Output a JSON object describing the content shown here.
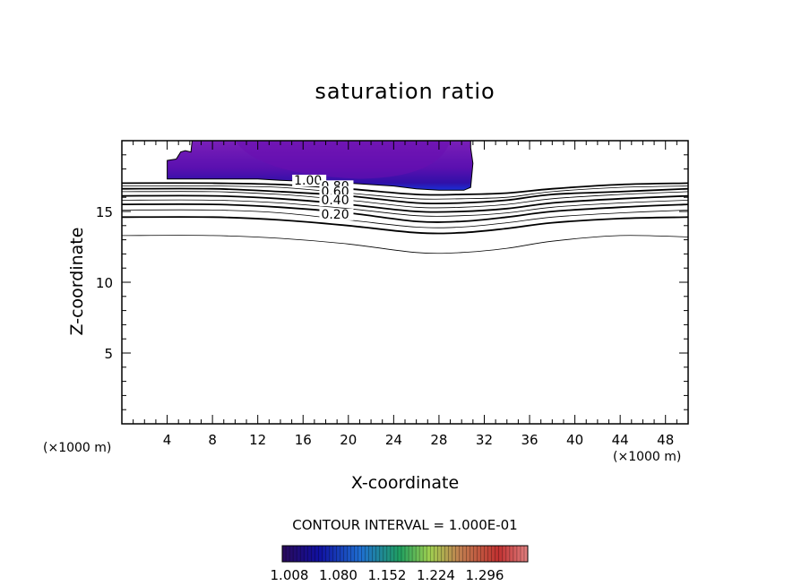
{
  "chart_data": {
    "type": "contour",
    "title": "saturation ratio",
    "xlabel": "X-coordinate",
    "ylabel": "Z-coordinate",
    "x_unit_left": "(×1000 m)",
    "x_unit_right": "(×1000 m)",
    "xlim": [
      0,
      50
    ],
    "ylim": [
      0,
      20
    ],
    "x_ticks": [
      4,
      8,
      12,
      16,
      20,
      24,
      28,
      32,
      36,
      40,
      44,
      48
    ],
    "y_ticks": [
      5,
      10,
      15
    ],
    "contour_interval_text": "CONTOUR INTERVAL = 1.000E-01",
    "contour_labels": [
      {
        "text": "1.00",
        "x": 15.2,
        "z": 16.9
      },
      {
        "text": "0.80",
        "x": 17.6,
        "z": 16.5
      },
      {
        "text": "0.60",
        "x": 17.6,
        "z": 16.1
      },
      {
        "text": "0.40",
        "x": 17.6,
        "z": 15.5
      },
      {
        "text": "0.20",
        "x": 17.6,
        "z": 14.5
      }
    ],
    "contour_lines": [
      {
        "level": 1.0,
        "bold": true,
        "points": [
          [
            0,
            17.0
          ],
          [
            8,
            17.0
          ],
          [
            14,
            16.9
          ],
          [
            20,
            16.6
          ],
          [
            26,
            16.2
          ],
          [
            30,
            16.2
          ],
          [
            34,
            16.3
          ],
          [
            38,
            16.6
          ],
          [
            44,
            16.9
          ],
          [
            50,
            17.0
          ]
        ]
      },
      {
        "level": 0.9,
        "bold": false,
        "points": [
          [
            0,
            16.8
          ],
          [
            8,
            16.8
          ],
          [
            14,
            16.7
          ],
          [
            20,
            16.3
          ],
          [
            26,
            15.9
          ],
          [
            30,
            15.9
          ],
          [
            34,
            16.0
          ],
          [
            38,
            16.4
          ],
          [
            44,
            16.7
          ],
          [
            50,
            16.8
          ]
        ]
      },
      {
        "level": 0.8,
        "bold": true,
        "points": [
          [
            0,
            16.6
          ],
          [
            8,
            16.6
          ],
          [
            14,
            16.4
          ],
          [
            20,
            16.1
          ],
          [
            26,
            15.6
          ],
          [
            30,
            15.6
          ],
          [
            34,
            15.8
          ],
          [
            38,
            16.2
          ],
          [
            44,
            16.4
          ],
          [
            50,
            16.6
          ]
        ]
      },
      {
        "level": 0.7,
        "bold": false,
        "points": [
          [
            0,
            16.4
          ],
          [
            8,
            16.4
          ],
          [
            14,
            16.2
          ],
          [
            20,
            15.8
          ],
          [
            26,
            15.3
          ],
          [
            30,
            15.3
          ],
          [
            34,
            15.5
          ],
          [
            38,
            15.9
          ],
          [
            44,
            16.2
          ],
          [
            50,
            16.4
          ]
        ]
      },
      {
        "level": 0.6,
        "bold": true,
        "points": [
          [
            0,
            16.1
          ],
          [
            8,
            16.1
          ],
          [
            14,
            15.9
          ],
          [
            20,
            15.5
          ],
          [
            26,
            15.0
          ],
          [
            30,
            15.0
          ],
          [
            34,
            15.2
          ],
          [
            38,
            15.6
          ],
          [
            44,
            15.9
          ],
          [
            50,
            16.1
          ]
        ]
      },
      {
        "level": 0.5,
        "bold": false,
        "points": [
          [
            0,
            15.8
          ],
          [
            8,
            15.8
          ],
          [
            14,
            15.6
          ],
          [
            20,
            15.2
          ],
          [
            26,
            14.7
          ],
          [
            30,
            14.7
          ],
          [
            34,
            14.9
          ],
          [
            38,
            15.3
          ],
          [
            44,
            15.6
          ],
          [
            50,
            15.8
          ]
        ]
      },
      {
        "level": 0.4,
        "bold": true,
        "points": [
          [
            0,
            15.5
          ],
          [
            8,
            15.5
          ],
          [
            14,
            15.3
          ],
          [
            20,
            14.9
          ],
          [
            26,
            14.3
          ],
          [
            30,
            14.3
          ],
          [
            34,
            14.6
          ],
          [
            38,
            15.0
          ],
          [
            44,
            15.3
          ],
          [
            50,
            15.5
          ]
        ]
      },
      {
        "level": 0.3,
        "bold": false,
        "points": [
          [
            0,
            15.1
          ],
          [
            8,
            15.1
          ],
          [
            14,
            14.9
          ],
          [
            20,
            14.4
          ],
          [
            26,
            13.9
          ],
          [
            30,
            13.9
          ],
          [
            34,
            14.2
          ],
          [
            38,
            14.6
          ],
          [
            44,
            14.9
          ],
          [
            50,
            15.1
          ]
        ]
      },
      {
        "level": 0.2,
        "bold": true,
        "points": [
          [
            0,
            14.6
          ],
          [
            8,
            14.6
          ],
          [
            14,
            14.4
          ],
          [
            20,
            14.0
          ],
          [
            26,
            13.5
          ],
          [
            30,
            13.5
          ],
          [
            34,
            13.8
          ],
          [
            38,
            14.2
          ],
          [
            44,
            14.5
          ],
          [
            50,
            14.6
          ]
        ]
      },
      {
        "level": 0.1,
        "bold": false,
        "points": [
          [
            0,
            13.3
          ],
          [
            8,
            13.3
          ],
          [
            14,
            13.1
          ],
          [
            20,
            12.7
          ],
          [
            26,
            12.1
          ],
          [
            30,
            12.1
          ],
          [
            34,
            12.4
          ],
          [
            38,
            12.9
          ],
          [
            44,
            13.3
          ],
          [
            50,
            13.2
          ]
        ]
      }
    ],
    "supersaturated_region": {
      "outline": [
        [
          4,
          17.3
        ],
        [
          4,
          18.6
        ],
        [
          4.8,
          18.7
        ],
        [
          5.2,
          19.2
        ],
        [
          5.6,
          19.3
        ],
        [
          6.1,
          19.2
        ],
        [
          6.2,
          20
        ],
        [
          30.8,
          20
        ],
        [
          30.8,
          19.5
        ],
        [
          31.0,
          18.4
        ],
        [
          30.8,
          16.7
        ],
        [
          30.2,
          16.5
        ],
        [
          28,
          16.5
        ],
        [
          26,
          16.6
        ],
        [
          24,
          16.8
        ],
        [
          22,
          16.9
        ],
        [
          20,
          17.0
        ],
        [
          17,
          17.1
        ],
        [
          14,
          17.2
        ],
        [
          12,
          17.3
        ]
      ],
      "color_core": "#6a0fb0",
      "color_outer": "#8a22b6",
      "color_base": "#1f2fd0"
    },
    "colorbar": {
      "labels": [
        "1.008",
        "1.080",
        "1.152",
        "1.224",
        "1.296"
      ],
      "colors": [
        "#2a0a5a",
        "#1010a0",
        "#1f6fd0",
        "#20a060",
        "#9fd050",
        "#c08050",
        "#c03030",
        "#e08080"
      ]
    }
  }
}
